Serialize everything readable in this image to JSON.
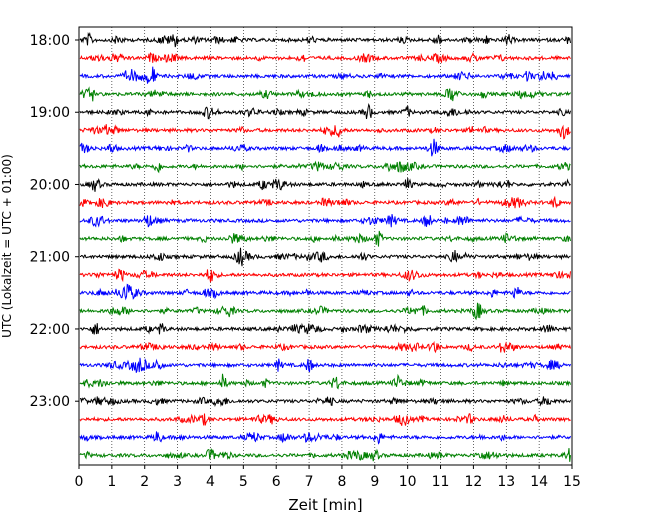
{
  "chart_data": {
    "type": "line",
    "title": "",
    "xlabel": "Zeit  [min]",
    "ylabel": "UTC (Lokalzeit = UTC + 01:00)",
    "xlim": [
      0,
      15
    ],
    "x_ticks": [
      "0",
      "1",
      "2",
      "3",
      "4",
      "5",
      "6",
      "7",
      "8",
      "9",
      "10",
      "11",
      "12",
      "13",
      "14",
      "15"
    ],
    "y_tick_labels": [
      "18:00",
      "19:00",
      "20:00",
      "21:00",
      "22:00",
      "23:00"
    ],
    "grid": "vertical dotted lines at each minute",
    "trace_interval_minutes": 15,
    "trace_start_times": [
      "18:00",
      "18:15",
      "18:30",
      "18:45",
      "19:00",
      "19:15",
      "19:30",
      "19:45",
      "20:00",
      "20:15",
      "20:30",
      "20:45",
      "21:00",
      "21:15",
      "21:30",
      "21:45",
      "22:00",
      "22:15",
      "22:30",
      "22:45",
      "23:00",
      "23:15",
      "23:30",
      "23:45"
    ],
    "trace_colors": [
      "#000000",
      "#ff0000",
      "#0000ff",
      "#008000"
    ],
    "events": [
      {
        "trace": 0,
        "t": 0.3,
        "amp": 5
      },
      {
        "trace": 0,
        "t": 1.2,
        "amp": 5
      },
      {
        "trace": 0,
        "t": 2.9,
        "amp": 6
      },
      {
        "trace": 0,
        "t": 10.9,
        "amp": 5
      },
      {
        "trace": 1,
        "t": 2.2,
        "amp": 4
      },
      {
        "trace": 1,
        "t": 6.8,
        "amp": 4
      },
      {
        "trace": 2,
        "t": 2.2,
        "amp": 10
      },
      {
        "trace": 2,
        "t": 1.5,
        "amp": 4
      },
      {
        "trace": 3,
        "t": 0.4,
        "amp": 5
      },
      {
        "trace": 3,
        "t": 11.3,
        "amp": 5
      },
      {
        "trace": 4,
        "t": 8.8,
        "amp": 7
      },
      {
        "trace": 4,
        "t": 2.2,
        "amp": 4
      },
      {
        "trace": 5,
        "t": 7.9,
        "amp": 6
      },
      {
        "trace": 5,
        "t": 14.7,
        "amp": 6
      },
      {
        "trace": 6,
        "t": 10.8,
        "amp": 6
      },
      {
        "trace": 6,
        "t": 1.0,
        "amp": 5
      },
      {
        "trace": 7,
        "t": 2.4,
        "amp": 5
      },
      {
        "trace": 7,
        "t": 9.4,
        "amp": 5
      },
      {
        "trace": 8,
        "t": 0.5,
        "amp": 4
      },
      {
        "trace": 8,
        "t": 10.0,
        "amp": 5
      },
      {
        "trace": 9,
        "t": 0.8,
        "amp": 5
      },
      {
        "trace": 9,
        "t": 14.5,
        "amp": 5
      },
      {
        "trace": 10,
        "t": 2.1,
        "amp": 5
      },
      {
        "trace": 10,
        "t": 10.6,
        "amp": 7
      },
      {
        "trace": 11,
        "t": 9.1,
        "amp": 7
      },
      {
        "trace": 11,
        "t": 13.0,
        "amp": 4
      },
      {
        "trace": 12,
        "t": 11.4,
        "amp": 6
      },
      {
        "trace": 12,
        "t": 4.9,
        "amp": 6
      },
      {
        "trace": 13,
        "t": 4.0,
        "amp": 5
      },
      {
        "trace": 13,
        "t": 1.3,
        "amp": 4
      },
      {
        "trace": 14,
        "t": 1.4,
        "amp": 9
      },
      {
        "trace": 14,
        "t": 13.3,
        "amp": 6
      },
      {
        "trace": 15,
        "t": 4.6,
        "amp": 5
      },
      {
        "trace": 15,
        "t": 12.1,
        "amp": 4
      },
      {
        "trace": 16,
        "t": 0.5,
        "amp": 6
      },
      {
        "trace": 16,
        "t": 2.5,
        "amp": 5
      },
      {
        "trace": 17,
        "t": 10.8,
        "amp": 6
      },
      {
        "trace": 17,
        "t": 12.9,
        "amp": 4
      },
      {
        "trace": 18,
        "t": 2.4,
        "amp": 7
      },
      {
        "trace": 18,
        "t": 7.0,
        "amp": 6
      },
      {
        "trace": 19,
        "t": 9.7,
        "amp": 7
      },
      {
        "trace": 19,
        "t": 7.8,
        "amp": 5
      },
      {
        "trace": 20,
        "t": 7.6,
        "amp": 5
      },
      {
        "trace": 20,
        "t": 0.6,
        "amp": 4
      },
      {
        "trace": 21,
        "t": 3.8,
        "amp": 5
      },
      {
        "trace": 21,
        "t": 11.9,
        "amp": 4
      },
      {
        "trace": 22,
        "t": 2.4,
        "amp": 6
      },
      {
        "trace": 22,
        "t": 9.1,
        "amp": 6
      },
      {
        "trace": 23,
        "t": 4.0,
        "amp": 6
      },
      {
        "trace": 23,
        "t": 9.0,
        "amp": 5
      },
      {
        "trace": 23,
        "t": 14.9,
        "amp": 6
      }
    ]
  }
}
